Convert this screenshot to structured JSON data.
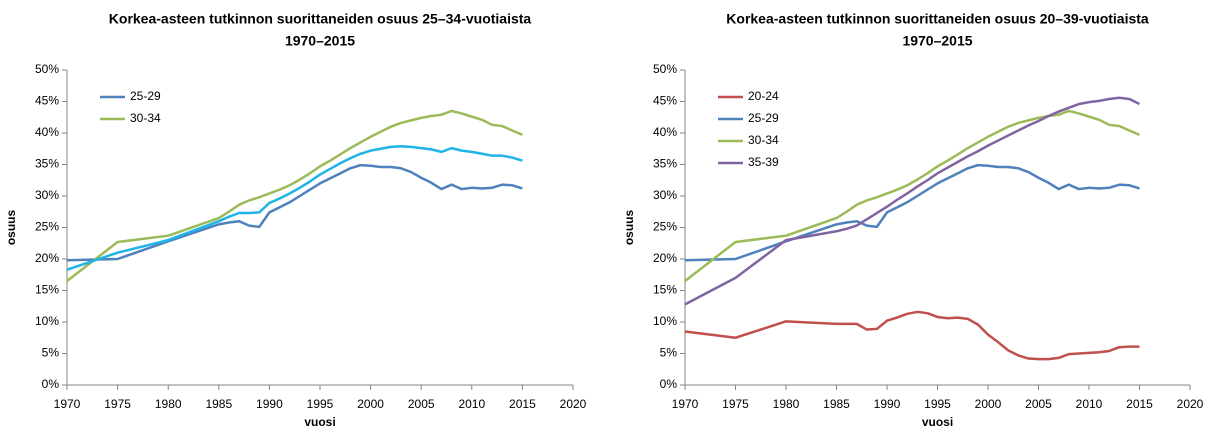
{
  "chart_data": [
    {
      "type": "line",
      "title": [
        "Korkea-asteen tutkinnon suorittaneiden osuus 25–34-vuotiaista",
        "1970–2015"
      ],
      "ylabel": "osuus",
      "xlabel": "vuosi",
      "x": [
        1970,
        1975,
        1980,
        1985,
        1986,
        1987,
        1988,
        1989,
        1990,
        1991,
        1992,
        1993,
        1994,
        1995,
        1996,
        1997,
        1998,
        1999,
        2000,
        2001,
        2002,
        2003,
        2004,
        2005,
        2006,
        2007,
        2008,
        2009,
        2010,
        2011,
        2012,
        2013,
        2014,
        2015
      ],
      "xlim": [
        1970,
        2020
      ],
      "xticks": [
        1970,
        1975,
        1980,
        1985,
        1990,
        1995,
        2000,
        2005,
        2010,
        2015,
        2020
      ],
      "ylim": [
        0,
        50
      ],
      "yticks": [
        {
          "value": 0,
          "label": "0%"
        },
        {
          "value": 5,
          "label": "5%"
        },
        {
          "value": 10,
          "label": "10%"
        },
        {
          "value": 15,
          "label": "15%"
        },
        {
          "value": 20,
          "label": "20%"
        },
        {
          "value": 25,
          "label": "25%"
        },
        {
          "value": 30,
          "label": "30%"
        },
        {
          "value": 35,
          "label": "35%"
        },
        {
          "value": 40,
          "label": "40%"
        },
        {
          "value": 45,
          "label": "45%"
        },
        {
          "value": 50,
          "label": "50%"
        }
      ],
      "grid": false,
      "legend": "upper left",
      "series": [
        {
          "name": "25-29",
          "color": "#4f81bd",
          "values": [
            19.8,
            20,
            22.8,
            25.5,
            25.8,
            26,
            25.3,
            25.1,
            27.4,
            28.2,
            29,
            30,
            31,
            32,
            32.8,
            33.6,
            34.4,
            34.9,
            34.8,
            34.6,
            34.6,
            34.4,
            33.8,
            32.9,
            32.1,
            31.1,
            31.8,
            31.1,
            31.3,
            31.2,
            31.3,
            31.8,
            31.7,
            31.2
          ]
        },
        {
          "name": "30-34",
          "color": "#9bbb59",
          "values": [
            16.5,
            22.7,
            23.7,
            26.5,
            27.5,
            28.6,
            29.3,
            29.8,
            30.4,
            31,
            31.7,
            32.6,
            33.6,
            34.7,
            35.6,
            36.6,
            37.6,
            38.5,
            39.4,
            40.2,
            41,
            41.6,
            42,
            42.4,
            42.7,
            42.9,
            43.5,
            43.1,
            42.6,
            42.1,
            41.3,
            41.1,
            40.4,
            39.7
          ]
        },
        {
          "color": "#1fb4e8",
          "values": [
            18.3,
            21,
            23,
            26,
            26.7,
            27.3,
            27.3,
            27.4,
            28.9,
            29.6,
            30.4,
            31.3,
            32.3,
            33.4,
            34.3,
            35.2,
            36,
            36.7,
            37.2,
            37.5,
            37.8,
            37.9,
            37.8,
            37.6,
            37.4,
            37,
            37.6,
            37.2,
            37,
            36.7,
            36.4,
            36.4,
            36.1,
            35.6
          ]
        }
      ]
    },
    {
      "type": "line",
      "title": [
        "Korkea-asteen tutkinnon suorittaneiden osuus 20–39-vuotiaista",
        "1970–2015"
      ],
      "ylabel": "osuus",
      "xlabel": "vuosi",
      "x": [
        1970,
        1975,
        1980,
        1985,
        1986,
        1987,
        1988,
        1989,
        1990,
        1991,
        1992,
        1993,
        1994,
        1995,
        1996,
        1997,
        1998,
        1999,
        2000,
        2001,
        2002,
        2003,
        2004,
        2005,
        2006,
        2007,
        2008,
        2009,
        2010,
        2011,
        2012,
        2013,
        2014,
        2015
      ],
      "xlim": [
        1970,
        2020
      ],
      "xticks": [
        1970,
        1975,
        1980,
        1985,
        1990,
        1995,
        2000,
        2005,
        2010,
        2015,
        2020
      ],
      "ylim": [
        0,
        50
      ],
      "yticks": [
        {
          "value": 0,
          "label": "0%"
        },
        {
          "value": 5,
          "label": "5%"
        },
        {
          "value": 10,
          "label": "10%"
        },
        {
          "value": 15,
          "label": "15%"
        },
        {
          "value": 20,
          "label": "20%"
        },
        {
          "value": 25,
          "label": "25%"
        },
        {
          "value": 30,
          "label": "30%"
        },
        {
          "value": 35,
          "label": "35%"
        },
        {
          "value": 40,
          "label": "40%"
        },
        {
          "value": 45,
          "label": "45%"
        },
        {
          "value": 50,
          "label": "50%"
        }
      ],
      "grid": false,
      "legend": "upper left",
      "series": [
        {
          "name": "20-24",
          "color": "#c0504d",
          "values": [
            8.5,
            7.5,
            10.1,
            9.7,
            9.7,
            9.7,
            8.8,
            8.9,
            10.2,
            10.7,
            11.3,
            11.6,
            11.4,
            10.8,
            10.6,
            10.7,
            10.5,
            9.6,
            8,
            6.8,
            5.5,
            4.7,
            4.2,
            4.1,
            4.1,
            4.3,
            4.9,
            5,
            5.1,
            5.2,
            5.4,
            6,
            6.1,
            6.1
          ]
        },
        {
          "name": "25-29",
          "color": "#4f81bd",
          "values": [
            19.8,
            20,
            22.8,
            25.5,
            25.8,
            26,
            25.3,
            25.1,
            27.4,
            28.2,
            29,
            30,
            31,
            32,
            32.8,
            33.6,
            34.4,
            34.9,
            34.8,
            34.6,
            34.6,
            34.4,
            33.8,
            32.9,
            32.1,
            31.1,
            31.8,
            31.1,
            31.3,
            31.2,
            31.3,
            31.8,
            31.7,
            31.2
          ]
        },
        {
          "name": "30-34",
          "color": "#9bbb59",
          "values": [
            16.5,
            22.7,
            23.7,
            26.5,
            27.5,
            28.6,
            29.3,
            29.8,
            30.4,
            31,
            31.7,
            32.6,
            33.6,
            34.7,
            35.6,
            36.6,
            37.6,
            38.5,
            39.4,
            40.2,
            41,
            41.6,
            42,
            42.4,
            42.7,
            42.9,
            43.5,
            43.1,
            42.6,
            42.1,
            41.3,
            41.1,
            40.4,
            39.7
          ]
        },
        {
          "name": "35-39",
          "color": "#8064a2",
          "values": [
            12.8,
            17,
            23,
            24.4,
            24.8,
            25.3,
            26.3,
            27.3,
            28.3,
            29.4,
            30.4,
            31.5,
            32.5,
            33.6,
            34.5,
            35.4,
            36.3,
            37.1,
            38,
            38.8,
            39.6,
            40.4,
            41.2,
            41.9,
            42.7,
            43.4,
            44,
            44.6,
            44.9,
            45.1,
            45.4,
            45.6,
            45.4,
            44.6
          ]
        }
      ]
    }
  ]
}
